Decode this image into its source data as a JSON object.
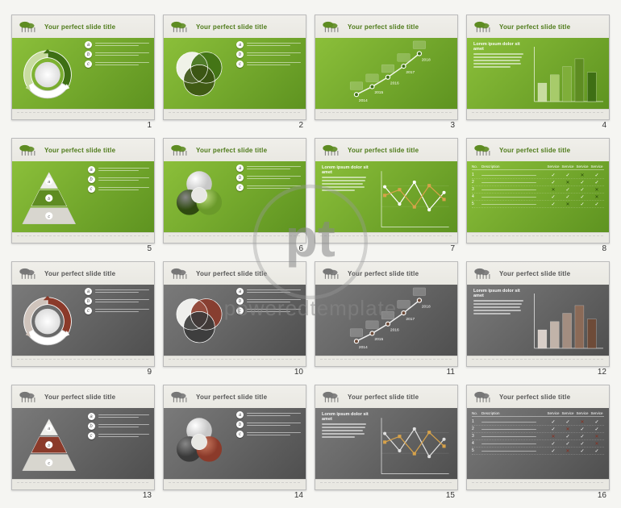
{
  "common": {
    "slide_title": "Your perfect slide title",
    "lorem_title": "Lorem ipsum dolor sit amet",
    "watermark_text": "poweredtemplate"
  },
  "themes": {
    "green": {
      "title_color": "#4d7a18",
      "body_bg_start": "#8bbf3a",
      "body_bg_end": "#5e9320",
      "accent": "#3e6f14",
      "accent2": "#ffffff"
    },
    "gray": {
      "title_color": "#555555",
      "body_bg_start": "#7a7a7a",
      "body_bg_end": "#4f4f4f",
      "accent": "#8b3a2a",
      "accent2": "#ffffff"
    }
  },
  "bullets": [
    "a",
    "b",
    "c"
  ],
  "timeline": {
    "years": [
      "2014",
      "2015",
      "2016",
      "2017",
      "2018"
    ],
    "points_y": [
      72,
      62,
      50,
      36,
      20
    ]
  },
  "bar_chart": {
    "title": "Lorem ipsum dolor sit amet",
    "values": [
      38,
      55,
      72,
      88,
      60
    ],
    "green_colors": [
      "#c8dca0",
      "#a7cb6a",
      "#7fae3a",
      "#5e8c22",
      "#3e6f14"
    ],
    "gray_colors": [
      "#d9cfc9",
      "#c1b3a9",
      "#a38d80",
      "#8b6a57",
      "#6e4b38"
    ]
  },
  "line_chart": {
    "series_a": [
      70,
      40,
      78,
      30,
      60
    ],
    "series_b": [
      55,
      65,
      35,
      72,
      48
    ],
    "a_color_green": "#ffffff",
    "b_color_green": "#d7a24a",
    "a_color_gray": "#e0e0e0",
    "b_color_gray": "#d7a24a"
  },
  "table": {
    "headers": [
      "No.",
      "Description",
      "Service",
      "Service",
      "Service",
      "Service"
    ],
    "rows": [
      {
        "n": "1",
        "cells": [
          "check",
          "check",
          "cross",
          "check"
        ]
      },
      {
        "n": "2",
        "cells": [
          "check",
          "cross",
          "check",
          "check"
        ]
      },
      {
        "n": "3",
        "cells": [
          "cross",
          "check",
          "check",
          "cross"
        ]
      },
      {
        "n": "4",
        "cells": [
          "check",
          "check",
          "check",
          "cross"
        ]
      },
      {
        "n": "5",
        "cells": [
          "check",
          "cross",
          "check",
          "check"
        ]
      }
    ]
  },
  "slides": [
    {
      "num": 1,
      "theme": "green",
      "type": "cycle"
    },
    {
      "num": 2,
      "theme": "green",
      "type": "venn"
    },
    {
      "num": 3,
      "theme": "green",
      "type": "timeline"
    },
    {
      "num": 4,
      "theme": "green",
      "type": "bars"
    },
    {
      "num": 5,
      "theme": "green",
      "type": "pyramid"
    },
    {
      "num": 6,
      "theme": "green",
      "type": "spheres"
    },
    {
      "num": 7,
      "theme": "green",
      "type": "lines"
    },
    {
      "num": 8,
      "theme": "green",
      "type": "table"
    },
    {
      "num": 9,
      "theme": "gray",
      "type": "cycle"
    },
    {
      "num": 10,
      "theme": "gray",
      "type": "venn"
    },
    {
      "num": 11,
      "theme": "gray",
      "type": "timeline"
    },
    {
      "num": 12,
      "theme": "gray",
      "type": "bars"
    },
    {
      "num": 13,
      "theme": "gray",
      "type": "pyramid"
    },
    {
      "num": 14,
      "theme": "gray",
      "type": "spheres"
    },
    {
      "num": 15,
      "theme": "gray",
      "type": "lines"
    },
    {
      "num": 16,
      "theme": "gray",
      "type": "table"
    }
  ]
}
